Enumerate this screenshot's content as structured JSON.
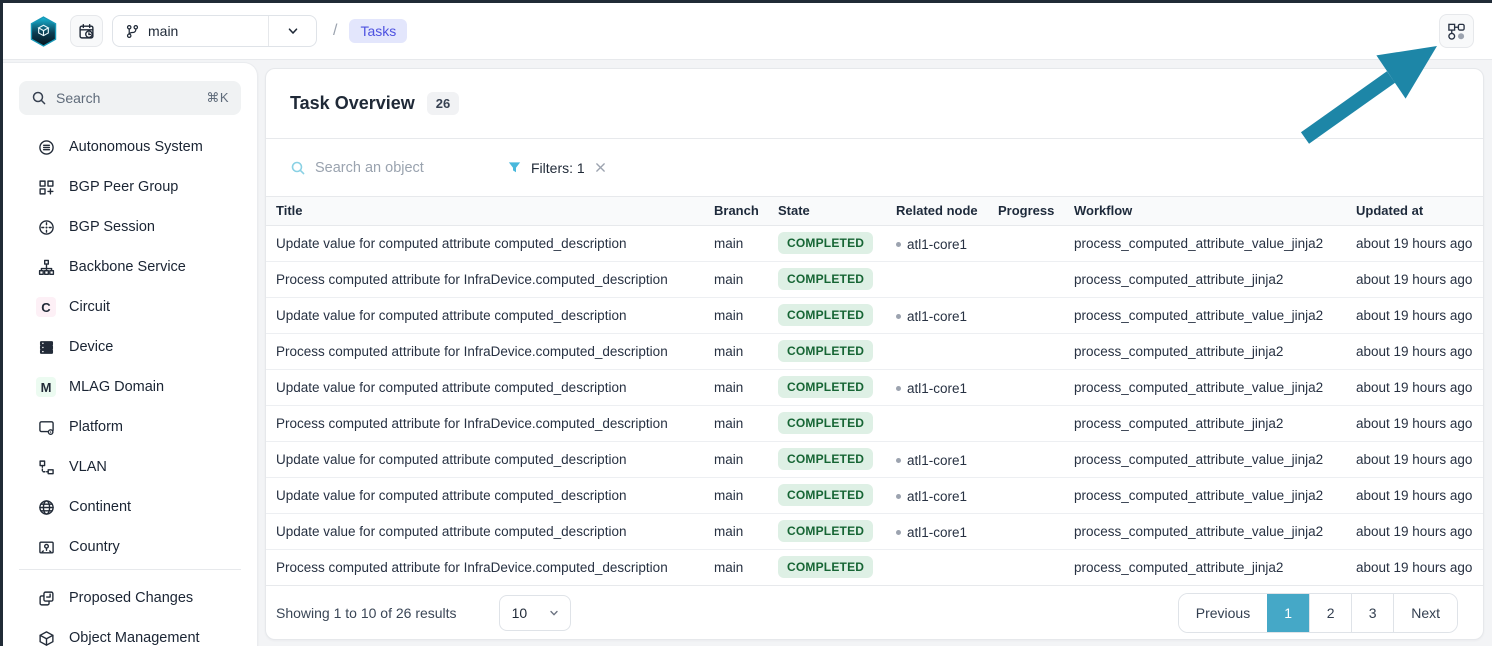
{
  "header": {
    "branch_selector": {
      "value": "main"
    },
    "breadcrumb": {
      "separator": "/",
      "current": "Tasks"
    }
  },
  "sidebar": {
    "search": {
      "placeholder": "Search",
      "shortcut": "⌘K"
    },
    "items": [
      {
        "label": "Autonomous System",
        "icon": "autonomous-system"
      },
      {
        "label": "BGP Peer Group",
        "icon": "bgp-peer-group"
      },
      {
        "label": "BGP Session",
        "icon": "bgp-session"
      },
      {
        "label": "Backbone Service",
        "icon": "backbone-service"
      },
      {
        "label": "Circuit",
        "icon": "letter-pink",
        "letter": "C"
      },
      {
        "label": "Device",
        "icon": "device"
      },
      {
        "label": "MLAG Domain",
        "icon": "letter-green",
        "letter": "M"
      },
      {
        "label": "Platform",
        "icon": "platform"
      },
      {
        "label": "VLAN",
        "icon": "vlan"
      },
      {
        "label": "Continent",
        "icon": "continent"
      },
      {
        "label": "Country",
        "icon": "country"
      }
    ],
    "footer_items": [
      {
        "label": "Proposed Changes",
        "icon": "proposed-changes"
      },
      {
        "label": "Object Management",
        "icon": "object-management"
      }
    ]
  },
  "main": {
    "title": "Task Overview",
    "count": "26",
    "toolbar": {
      "search_placeholder": "Search an object",
      "filters_label": "Filters: 1"
    },
    "table": {
      "columns": [
        "Title",
        "Branch",
        "State",
        "Related node",
        "Progress",
        "Workflow",
        "Updated at"
      ],
      "rows": [
        {
          "title": "Update value for computed attribute computed_description",
          "branch": "main",
          "state": "COMPLETED",
          "related_node": "atl1-core1",
          "progress": "",
          "workflow": "process_computed_attribute_value_jinja2",
          "updated": "about 19 hours ago"
        },
        {
          "title": "Process computed attribute for InfraDevice.computed_description",
          "branch": "main",
          "state": "COMPLETED",
          "related_node": "",
          "progress": "",
          "workflow": "process_computed_attribute_jinja2",
          "updated": "about 19 hours ago"
        },
        {
          "title": "Update value for computed attribute computed_description",
          "branch": "main",
          "state": "COMPLETED",
          "related_node": "atl1-core1",
          "progress": "",
          "workflow": "process_computed_attribute_value_jinja2",
          "updated": "about 19 hours ago"
        },
        {
          "title": "Process computed attribute for InfraDevice.computed_description",
          "branch": "main",
          "state": "COMPLETED",
          "related_node": "",
          "progress": "",
          "workflow": "process_computed_attribute_jinja2",
          "updated": "about 19 hours ago"
        },
        {
          "title": "Update value for computed attribute computed_description",
          "branch": "main",
          "state": "COMPLETED",
          "related_node": "atl1-core1",
          "progress": "",
          "workflow": "process_computed_attribute_value_jinja2",
          "updated": "about 19 hours ago"
        },
        {
          "title": "Process computed attribute for InfraDevice.computed_description",
          "branch": "main",
          "state": "COMPLETED",
          "related_node": "",
          "progress": "",
          "workflow": "process_computed_attribute_jinja2",
          "updated": "about 19 hours ago"
        },
        {
          "title": "Update value for computed attribute computed_description",
          "branch": "main",
          "state": "COMPLETED",
          "related_node": "atl1-core1",
          "progress": "",
          "workflow": "process_computed_attribute_value_jinja2",
          "updated": "about 19 hours ago"
        },
        {
          "title": "Update value for computed attribute computed_description",
          "branch": "main",
          "state": "COMPLETED",
          "related_node": "atl1-core1",
          "progress": "",
          "workflow": "process_computed_attribute_value_jinja2",
          "updated": "about 19 hours ago"
        },
        {
          "title": "Update value for computed attribute computed_description",
          "branch": "main",
          "state": "COMPLETED",
          "related_node": "atl1-core1",
          "progress": "",
          "workflow": "process_computed_attribute_value_jinja2",
          "updated": "about 19 hours ago"
        },
        {
          "title": "Process computed attribute for InfraDevice.computed_description",
          "branch": "main",
          "state": "COMPLETED",
          "related_node": "",
          "progress": "",
          "workflow": "process_computed_attribute_jinja2",
          "updated": "about 19 hours ago"
        }
      ]
    },
    "footer": {
      "showing": "Showing 1 to 10 of 26 results",
      "page_size": "10",
      "pagination": {
        "previous": "Previous",
        "pages": [
          "1",
          "2",
          "3"
        ],
        "active": "1",
        "next": "Next"
      }
    }
  },
  "colors": {
    "accent": "#45a8c7",
    "arrow": "#1d86a7",
    "badge_green_bg": "#def0e5",
    "badge_green_text": "#166534",
    "crumb_bg": "#e3e6fc",
    "crumb_text": "#4d51e0",
    "filter_blue": "#49b8dc",
    "pink": "#e0347e",
    "pink_bg": "#fdf0f6",
    "green": "#18a34b",
    "green_bg": "#ecfbf1"
  }
}
